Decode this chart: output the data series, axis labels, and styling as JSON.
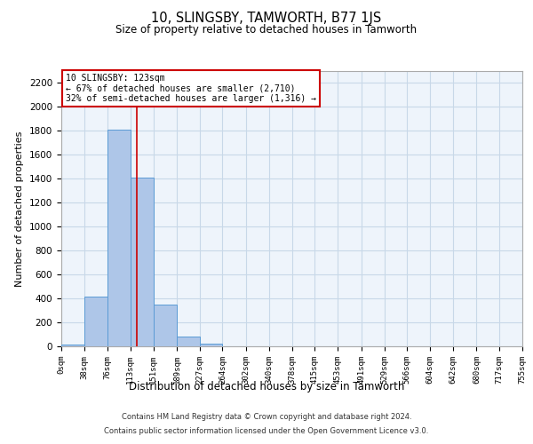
{
  "title": "10, SLINGSBY, TAMWORTH, B77 1JS",
  "subtitle": "Size of property relative to detached houses in Tamworth",
  "xlabel": "Distribution of detached houses by size in Tamworth",
  "ylabel": "Number of detached properties",
  "footer_line1": "Contains HM Land Registry data © Crown copyright and database right 2024.",
  "footer_line2": "Contains public sector information licensed under the Open Government Licence v3.0.",
  "bar_edges": [
    0,
    38,
    76,
    113,
    151,
    189,
    227,
    264,
    302,
    340,
    378,
    415,
    453,
    491,
    529,
    566,
    604,
    642,
    680,
    717,
    755
  ],
  "bar_values": [
    15,
    415,
    1810,
    1410,
    350,
    80,
    25,
    0,
    0,
    0,
    0,
    0,
    0,
    0,
    0,
    0,
    0,
    0,
    0,
    0
  ],
  "bar_color": "#aec6e8",
  "bar_edge_color": "#5b9bd5",
  "property_size": 123,
  "vline_color": "#cc0000",
  "ylim": [
    0,
    2300
  ],
  "yticks": [
    0,
    200,
    400,
    600,
    800,
    1000,
    1200,
    1400,
    1600,
    1800,
    2000,
    2200
  ],
  "grid_color": "#c8d8e8",
  "bg_color": "#eef4fb",
  "annotation_title": "10 SLINGSBY: 123sqm",
  "annotation_line1": "← 67% of detached houses are smaller (2,710)",
  "annotation_line2": "32% of semi-detached houses are larger (1,316) →",
  "annotation_box_color": "#ffffff",
  "annotation_box_edge": "#cc0000",
  "tick_labels": [
    "0sqm",
    "38sqm",
    "76sqm",
    "113sqm",
    "151sqm",
    "189sqm",
    "227sqm",
    "264sqm",
    "302sqm",
    "340sqm",
    "378sqm",
    "415sqm",
    "453sqm",
    "491sqm",
    "529sqm",
    "566sqm",
    "604sqm",
    "642sqm",
    "680sqm",
    "717sqm",
    "755sqm"
  ]
}
